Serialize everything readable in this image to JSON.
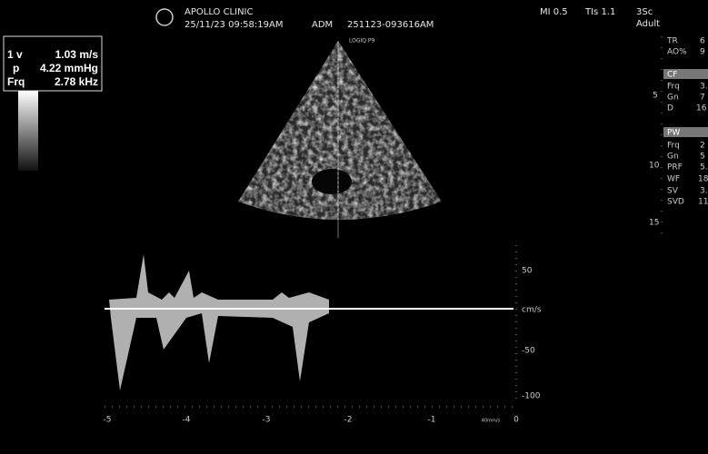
{
  "header": {
    "clinic": "APOLLO CLINIC",
    "datetime": "25/11/23 09:58:19AM",
    "operator": "ADM",
    "exam_id": "251123-093616AM",
    "probe": "LOGIQ P9",
    "mi": "MI 0.5",
    "tis": "TIs 1.1",
    "probe_type": "3Sc",
    "preset": "Adult"
  },
  "measurements": [
    {
      "label": "1 v",
      "value": "1.03 m/s"
    },
    {
      "label": "p",
      "value": "4.22 mmHg"
    },
    {
      "label": "Frq",
      "value": "2.78 kHz"
    }
  ],
  "depth_scale": [
    "5",
    "10",
    "15"
  ],
  "right_panel": {
    "rows": [
      [
        "TR",
        "6"
      ],
      [
        "AO%",
        "9"
      ]
    ],
    "cf": {
      "title": "CF",
      "rows": [
        [
          "Frq",
          "3."
        ],
        [
          "Gn",
          "7"
        ],
        [
          "D",
          "16"
        ]
      ]
    },
    "pw": {
      "title": "PW",
      "rows": [
        [
          "Frq",
          "2"
        ],
        [
          "Gn",
          "5"
        ],
        [
          "PRF",
          "5."
        ],
        [
          "WF",
          "18"
        ],
        [
          "SV",
          "3."
        ],
        [
          "SVD",
          "11"
        ]
      ]
    }
  },
  "doppler": {
    "velocity_ticks": [
      "50",
      "-50",
      "-100"
    ],
    "unit": "cm/s",
    "time_ticks": [
      "-5",
      "-4",
      "-3",
      "-2",
      "-1",
      "0"
    ],
    "sweep": "40mm/s"
  }
}
